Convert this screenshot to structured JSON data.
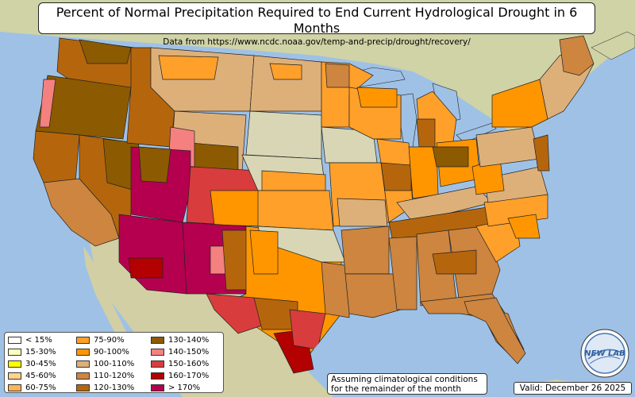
{
  "title": "Percent of Normal Precipitation Required to End Current Hydrological Drought in 6 Months",
  "subtitle": "Data from https://www.ncdc.noaa.gov/temp-and-precip/drought/recovery/",
  "colors": {
    "ocean": "#9fc1e6",
    "land": "#d8d6b4",
    "c_lt15": "#ffffff",
    "c_15_30": "#ffffc0",
    "c_30_45": "#ffff00",
    "c_45_60": "#ffd38c",
    "c_60_75": "#ffb45a",
    "c_75_90": "#ffa02a",
    "c_90_100": "#ff9600",
    "c_100_110": "#ddb07a",
    "c_110_120": "#cd853f",
    "c_120_130": "#b5660c",
    "c_130_140": "#8c5a00",
    "c_140_150": "#f58080",
    "c_150_160": "#d93c3c",
    "c_160_170": "#b30000",
    "c_gt170": "#b5004f"
  },
  "legend": [
    {
      "label": "< 15%",
      "color": "#ffffff"
    },
    {
      "label": "15-30%",
      "color": "#ffffc0"
    },
    {
      "label": "30-45%",
      "color": "#ffff00"
    },
    {
      "label": "45-60%",
      "color": "#ffd38c"
    },
    {
      "label": "60-75%",
      "color": "#ffb45a"
    },
    {
      "label": "75-90%",
      "color": "#ffa02a"
    },
    {
      "label": "90-100%",
      "color": "#ff9600"
    },
    {
      "label": "100-110%",
      "color": "#ddb07a"
    },
    {
      "label": "110-120%",
      "color": "#cd853f"
    },
    {
      "label": "120-130%",
      "color": "#b5660c"
    },
    {
      "label": "130-140%",
      "color": "#8c5a00"
    },
    {
      "label": "140-150%",
      "color": "#f58080"
    },
    {
      "label": "150-160%",
      "color": "#d93c3c"
    },
    {
      "label": "160-170%",
      "color": "#b30000"
    },
    {
      "label": "> 170%",
      "color": "#b5004f"
    }
  ],
  "note_line1": "Assuming climatological conditions",
  "note_line2": "for the remainder of the month",
  "valid": "Valid: December 26 2025",
  "logo_text": "NEW LAB"
}
